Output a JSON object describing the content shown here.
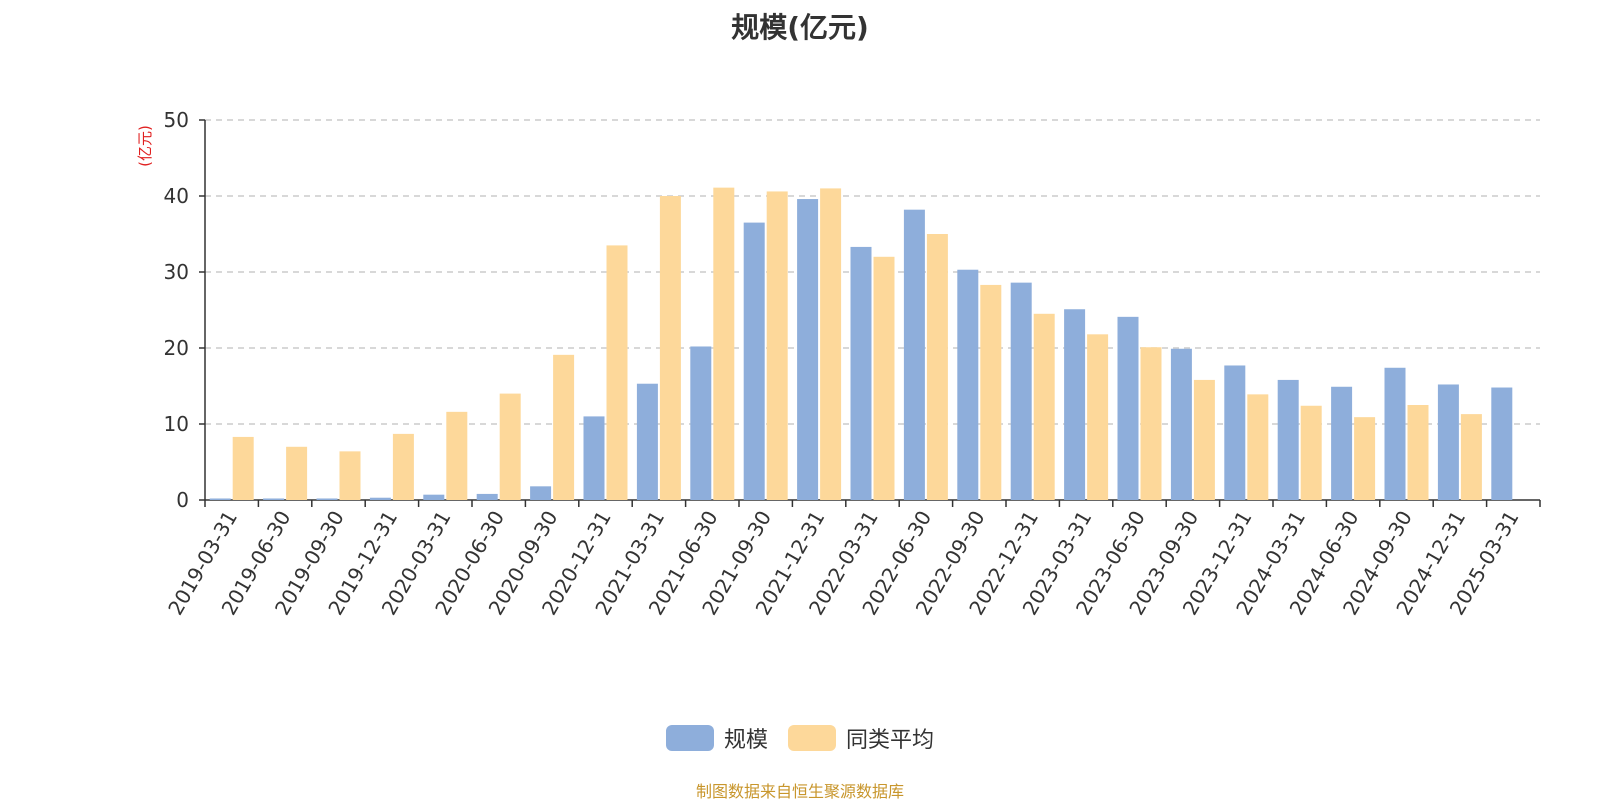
{
  "chart_data": {
    "type": "bar",
    "title": "规模(亿元)",
    "ylabel": "(亿元)",
    "ylim": [
      0,
      50
    ],
    "yticks": [
      0,
      10,
      20,
      30,
      40,
      50
    ],
    "grid": true,
    "legend_position": "bottom",
    "categories": [
      "2019-03-31",
      "2019-06-30",
      "2019-09-30",
      "2019-12-31",
      "2020-03-31",
      "2020-06-30",
      "2020-09-30",
      "2020-12-31",
      "2021-03-31",
      "2021-06-30",
      "2021-09-30",
      "2021-12-31",
      "2022-03-31",
      "2022-06-30",
      "2022-09-30",
      "2022-12-31",
      "2023-03-31",
      "2023-06-30",
      "2023-09-30",
      "2023-12-31",
      "2024-03-31",
      "2024-06-30",
      "2024-09-30",
      "2024-12-31",
      "2025-03-31"
    ],
    "series": [
      {
        "name": "规模",
        "color": "#8eaedb",
        "values": [
          0.2,
          0.2,
          0.2,
          0.3,
          0.7,
          0.8,
          1.8,
          11.0,
          15.3,
          20.2,
          36.5,
          39.6,
          33.3,
          38.2,
          30.3,
          28.6,
          25.1,
          24.1,
          19.9,
          17.7,
          15.8,
          14.9,
          17.4,
          15.2,
          14.8
        ]
      },
      {
        "name": "同类平均",
        "color": "#fdd89a",
        "values": [
          8.3,
          7.0,
          6.4,
          8.7,
          11.6,
          14.0,
          19.1,
          33.5,
          40.0,
          41.1,
          40.6,
          41.0,
          32.0,
          35.0,
          28.3,
          24.5,
          21.8,
          20.1,
          15.8,
          13.9,
          12.4,
          10.9,
          12.5,
          11.3,
          null
        ]
      }
    ]
  },
  "source_text": "制图数据来自恒生聚源数据库"
}
